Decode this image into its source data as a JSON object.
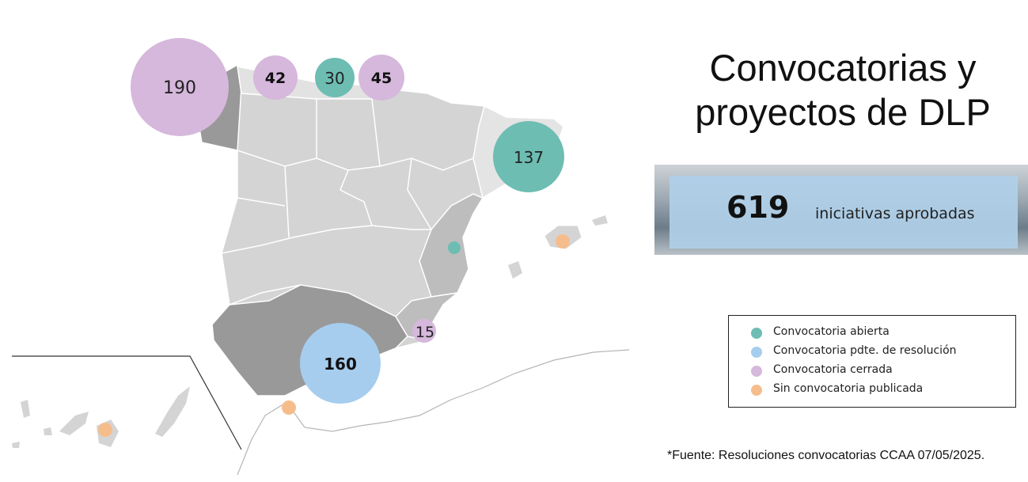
{
  "title": {
    "line1": "Convocatorias y",
    "line2": "proyectos de DLP"
  },
  "summary": {
    "value": "619",
    "label": "iniciativas aprobadas"
  },
  "legend": [
    {
      "label": "Convocatoria abierta",
      "color": "#6dbdb3"
    },
    {
      "label": "Convocatoria pdte. de resolución",
      "color": "#a6cdee"
    },
    {
      "label": "Convocatoria cerrada",
      "color": "#d6b8dc"
    },
    {
      "label": "Sin convocatoria publicada",
      "color": "#f6bd8c"
    }
  ],
  "source": "*Fuente: Resoluciones convocatorias CCAA 07/05/2025.",
  "regions": [
    {
      "name": "Galicia",
      "value": "190",
      "status": "Convocatoria cerrada"
    },
    {
      "name": "Asturias",
      "value": "42",
      "status": "Convocatoria cerrada"
    },
    {
      "name": "Cantabria",
      "value": "30",
      "status": "Convocatoria abierta"
    },
    {
      "name": "País Vasco",
      "value": "45",
      "status": "Convocatoria cerrada"
    },
    {
      "name": "Cataluña",
      "value": "137",
      "status": "Convocatoria abierta"
    },
    {
      "name": "Comunidad Valenciana",
      "value": "",
      "status": "Convocatoria abierta"
    },
    {
      "name": "Región de Murcia",
      "value": "15",
      "status": "Convocatoria cerrada"
    },
    {
      "name": "Andalucía",
      "value": "160",
      "status": "Convocatoria pdte. de resolución"
    },
    {
      "name": "Illes Balears",
      "value": "",
      "status": "Sin convocatoria publicada"
    },
    {
      "name": "Ceuta",
      "value": "",
      "status": "Sin convocatoria publicada"
    },
    {
      "name": "Canarias",
      "value": "",
      "status": "Sin convocatoria publicada"
    }
  ],
  "colors": {
    "land_light": "#d4d4d4",
    "land_mid": "#bdbdbd",
    "land_dark": "#999999",
    "catalonia": "#e4e4e4",
    "border": "#ffffff"
  }
}
